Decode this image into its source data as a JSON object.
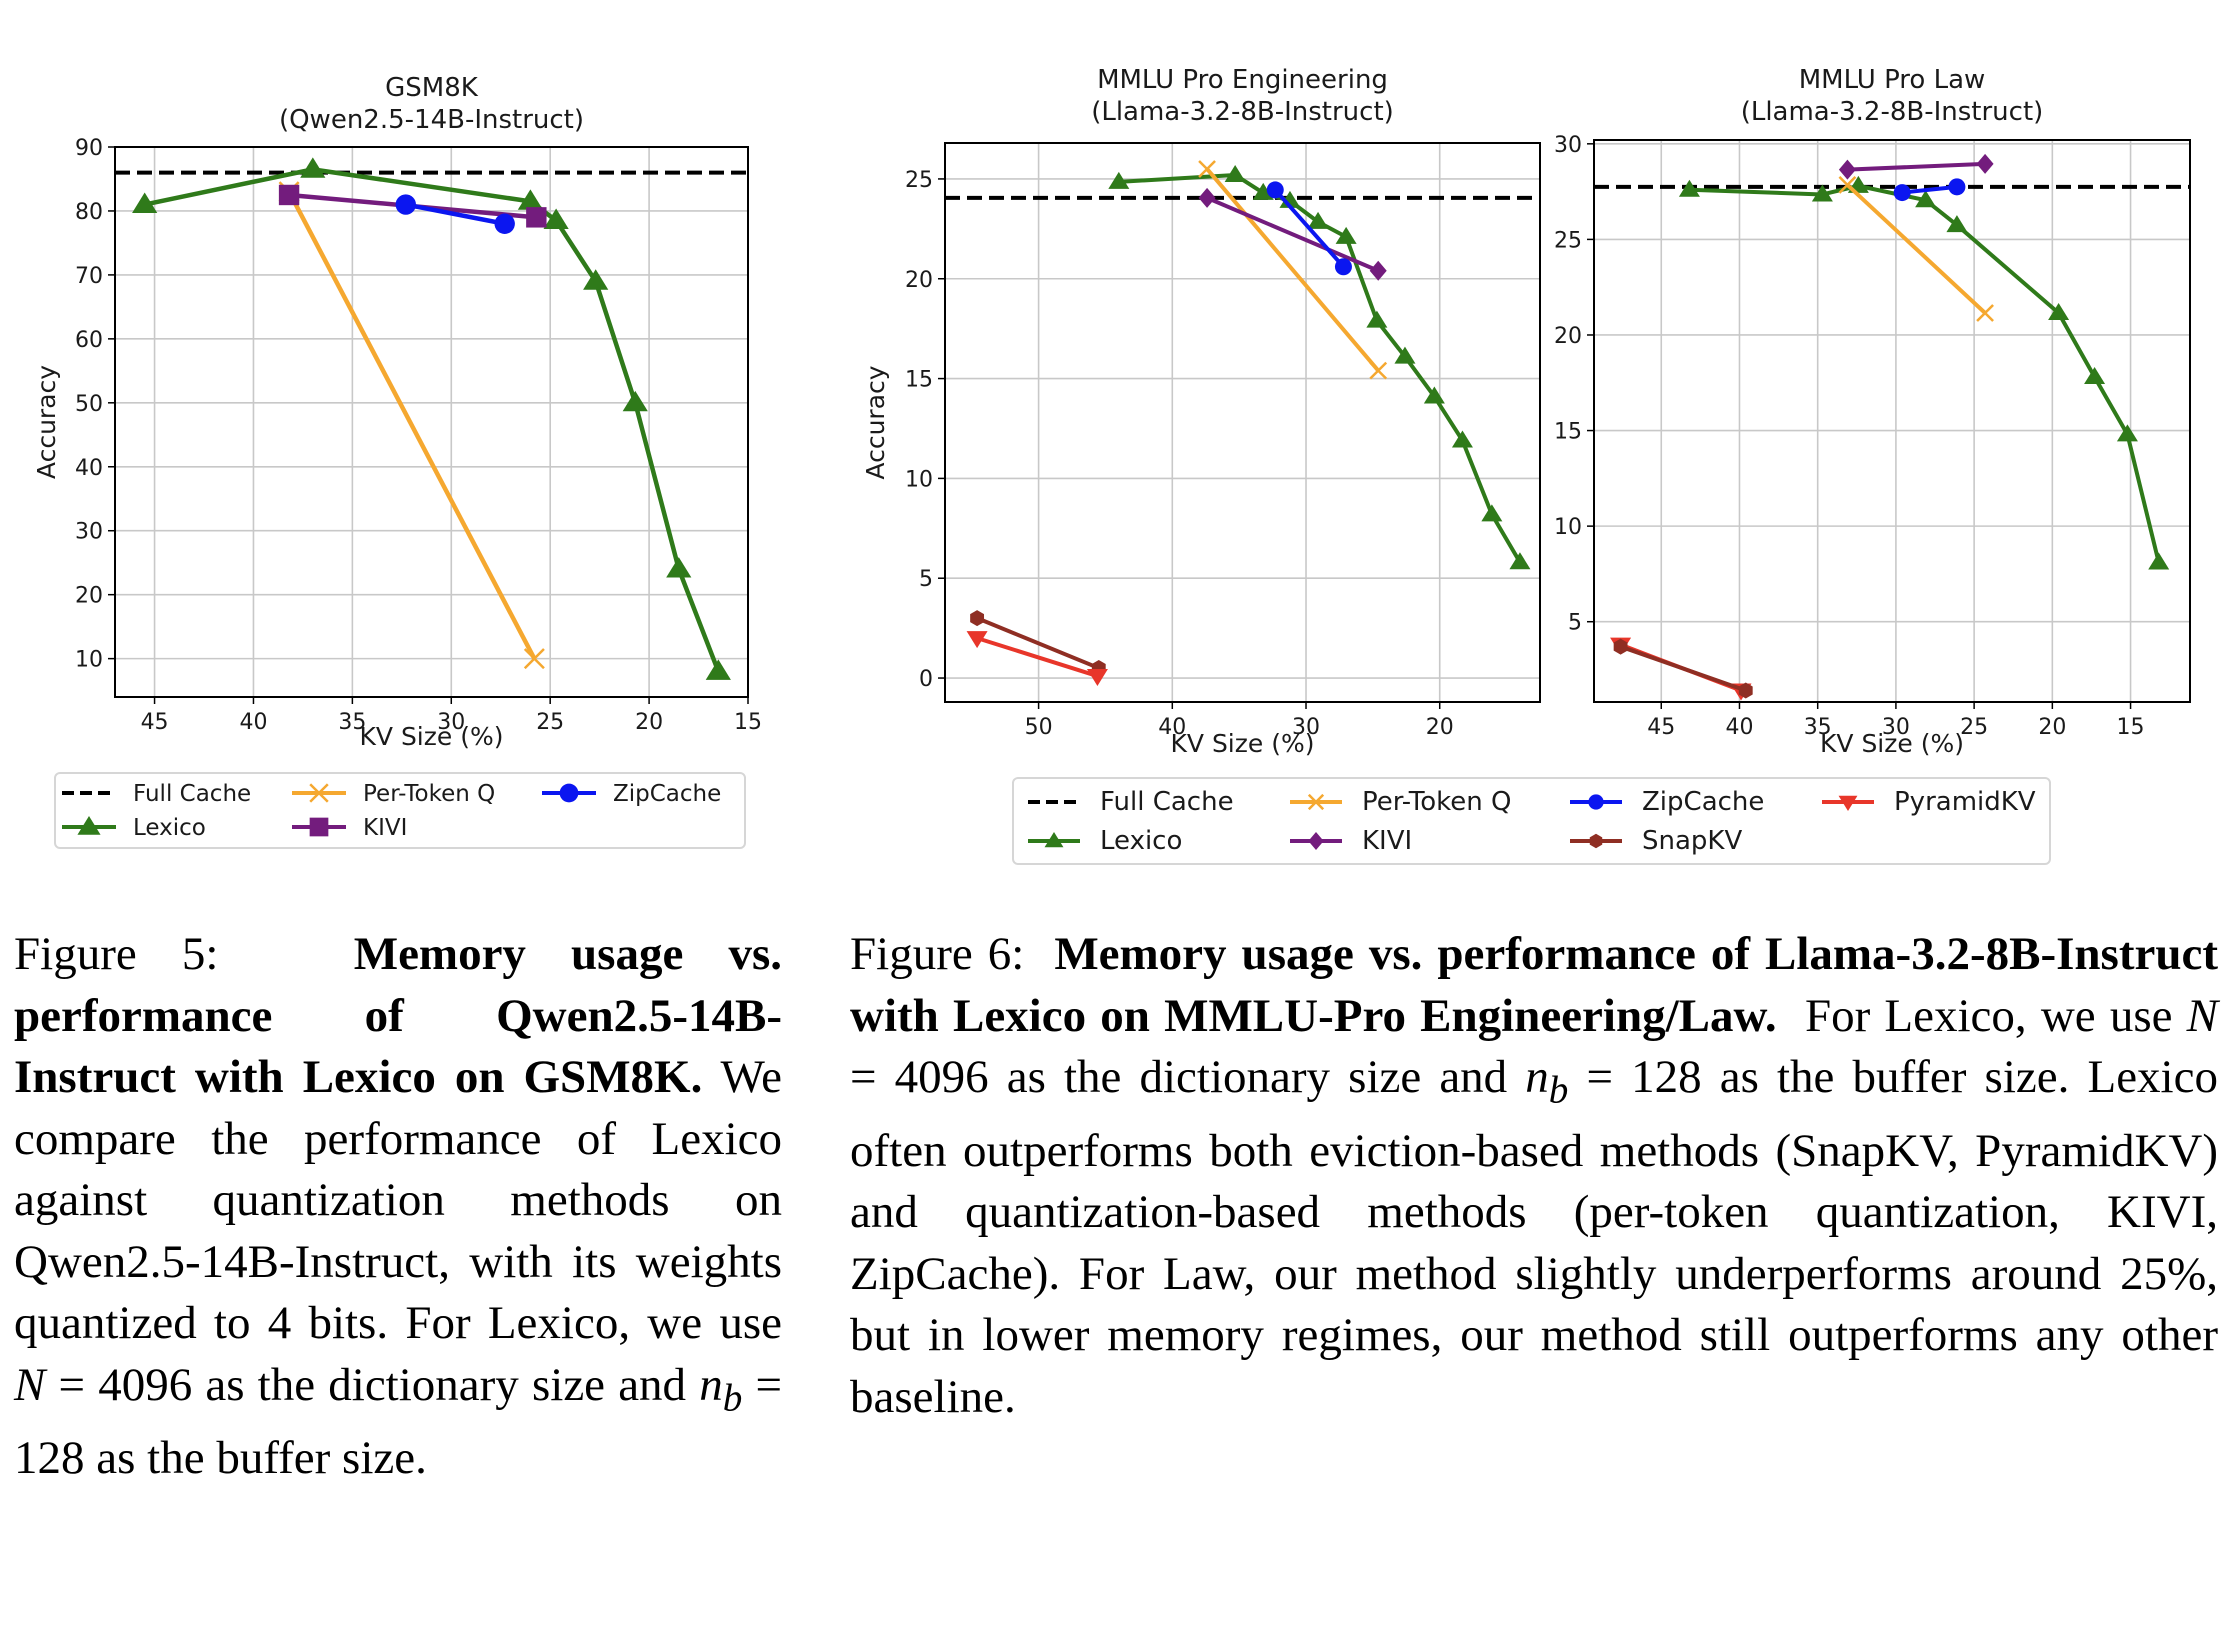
{
  "figure5": {
    "caption": {
      "label": "Figure 5:",
      "bold": "Memory usage vs. performance of Qwen2.5-14B-Instruct with Lexico on GSM8K.",
      "text_1": "We compare the performance of Lexico against quantization methods on Qwen2.5-14B-Instruct, with its weights quantized to 4 bits. For Lexico, we use",
      "math_N": "N",
      "eq_N": " = 4096 ",
      "text_2": "as the dictionary size and",
      "math_nb": "n",
      "math_nb_sub": "b",
      "eq_nb": " = 128 ",
      "text_3": "as the buffer size."
    },
    "legend": [
      {
        "name": "Full Cache",
        "series": "full_cache"
      },
      {
        "name": "Per-Token Q",
        "series": "per_token_q"
      },
      {
        "name": "ZipCache",
        "series": "zipcache"
      },
      {
        "name": "Lexico",
        "series": "lexico"
      },
      {
        "name": "KIVI",
        "series": "kivi"
      }
    ]
  },
  "figure6": {
    "caption": {
      "label": "Figure 6:",
      "bold": "Memory usage vs. performance of Llama-3.2-8B-Instruct with Lexico on MMLU-Pro Engineering/Law.",
      "text_1": "For Lexico, we use",
      "math_N": "N",
      "eq_N": " = 4096 ",
      "text_2": "as the dictionary size and",
      "math_nb": "n",
      "math_nb_sub": "b",
      "eq_nb": " = 128 ",
      "text_3": "as the buffer size. Lexico often outperforms both eviction-based methods (SnapKV, PyramidKV) and quantization-based methods (per-token quantization, KIVI, ZipCache). For Law, our method slightly underperforms around 25%, but in lower memory regimes, our method still outperforms any other baseline."
    },
    "legend": [
      {
        "name": "Full Cache",
        "series": "full_cache"
      },
      {
        "name": "Per-Token Q",
        "series": "per_token_q"
      },
      {
        "name": "ZipCache",
        "series": "zipcache"
      },
      {
        "name": "PyramidKV",
        "series": "pyramidkv"
      },
      {
        "name": "Lexico",
        "series": "lexico"
      },
      {
        "name": "KIVI",
        "series": "kivi"
      },
      {
        "name": "SnapKV",
        "series": "snapkv"
      }
    ]
  },
  "series_styles": {
    "full_cache": {
      "color": "#000000",
      "marker": "none",
      "dashed": true
    },
    "lexico": {
      "color": "#2f7a1a",
      "marker": "triangle-up"
    },
    "per_token_q": {
      "color": "#f5a830",
      "marker": "x"
    },
    "kivi": {
      "color": "#731c7d",
      "marker_fig5": "square",
      "marker": "diamond"
    },
    "zipcache": {
      "color": "#0b16f0",
      "marker": "circle"
    },
    "snapkv": {
      "color": "#8f2e23",
      "marker": "hexagon"
    },
    "pyramidkv": {
      "color": "#e8362a",
      "marker": "triangle-down"
    }
  },
  "chart_data": [
    {
      "type": "line",
      "title": "GSM8K\n(Qwen2.5-14B-Instruct)",
      "title_lines": [
        "GSM8K",
        "(Qwen2.5-14B-Instruct)"
      ],
      "xlabel": "KV Size (%)",
      "ylabel": "Accuracy",
      "xlim": [
        47,
        15
      ],
      "ylim": [
        4,
        90
      ],
      "xticks": [
        45,
        40,
        35,
        30,
        25,
        20,
        15
      ],
      "yticks": [
        10,
        20,
        30,
        40,
        50,
        60,
        70,
        80,
        90
      ],
      "grid": true,
      "legend_position": "below",
      "hline": {
        "name": "Full Cache",
        "y": 86
      },
      "series": [
        {
          "name": "Lexico",
          "key": "lexico",
          "marker": "triangle-up",
          "x": [
            45.5,
            37.0,
            26.0,
            24.7,
            22.7,
            20.7,
            18.5,
            16.5
          ],
          "y": [
            81,
            86.5,
            81.5,
            78.5,
            69,
            50,
            24,
            8
          ]
        },
        {
          "name": "Per-Token Q",
          "key": "per_token_q",
          "marker": "x",
          "x": [
            38.2,
            25.8
          ],
          "y": [
            83,
            10
          ]
        },
        {
          "name": "KIVI",
          "key": "kivi",
          "marker": "square",
          "x": [
            38.2,
            25.7
          ],
          "y": [
            82.5,
            79
          ]
        },
        {
          "name": "ZipCache",
          "key": "zipcache",
          "marker": "circle",
          "x": [
            32.3,
            27.3
          ],
          "y": [
            81,
            78
          ]
        }
      ]
    },
    {
      "type": "line",
      "title": "MMLU Pro Engineering\n(Llama-3.2-8B-Instruct)",
      "title_lines": [
        "MMLU Pro Engineering",
        "(Llama-3.2-8B-Instruct)"
      ],
      "xlabel": "KV Size (%)",
      "ylabel": "Accuracy",
      "xlim": [
        57,
        12.5
      ],
      "ylim": [
        -1.2,
        26.8
      ],
      "xticks": [
        50,
        40,
        30,
        20
      ],
      "yticks": [
        0,
        5,
        10,
        15,
        20,
        25
      ],
      "grid": true,
      "legend_position": "below",
      "hline": {
        "name": "Full Cache",
        "y": 24.05
      },
      "series": [
        {
          "name": "Lexico",
          "key": "lexico",
          "marker": "triangle-up",
          "x": [
            44.0,
            35.3,
            33.2,
            31.2,
            29.1,
            27.0,
            24.7,
            22.6,
            20.4,
            18.3,
            16.1,
            14.0
          ],
          "y": [
            24.85,
            25.2,
            24.3,
            23.9,
            22.85,
            22.1,
            17.9,
            16.1,
            14.1,
            11.9,
            8.2,
            5.8
          ]
        },
        {
          "name": "Per-Token Q",
          "key": "per_token_q",
          "marker": "x",
          "x": [
            37.4,
            24.6
          ],
          "y": [
            25.5,
            15.4
          ]
        },
        {
          "name": "KIVI",
          "key": "kivi",
          "marker": "diamond",
          "x": [
            37.4,
            24.6
          ],
          "y": [
            24.05,
            20.4
          ]
        },
        {
          "name": "ZipCache",
          "key": "zipcache",
          "marker": "circle",
          "x": [
            32.3,
            27.2
          ],
          "y": [
            24.45,
            20.6
          ]
        },
        {
          "name": "SnapKV",
          "key": "snapkv",
          "marker": "hexagon",
          "x": [
            54.6,
            45.5
          ],
          "y": [
            3.0,
            0.5
          ]
        },
        {
          "name": "PyramidKV",
          "key": "pyramidkv",
          "marker": "triangle-down",
          "x": [
            54.6,
            45.6
          ],
          "y": [
            2.0,
            0.1
          ]
        }
      ]
    },
    {
      "type": "line",
      "title": "MMLU Pro Law\n(Llama-3.2-8B-Instruct)",
      "title_lines": [
        "MMLU Pro Law",
        "(Llama-3.2-8B-Instruct)"
      ],
      "xlabel": "KV Size (%)",
      "ylabel": "",
      "xlim": [
        49.3,
        11.2
      ],
      "ylim": [
        0.8,
        30.2
      ],
      "xticks": [
        45,
        40,
        35,
        30,
        25,
        20,
        15
      ],
      "yticks": [
        5,
        10,
        15,
        20,
        25,
        30
      ],
      "grid": true,
      "legend_position": "below",
      "hline": {
        "name": "Full Cache",
        "y": 27.75
      },
      "series": [
        {
          "name": "Lexico",
          "key": "lexico",
          "marker": "triangle-up",
          "x": [
            43.2,
            34.7,
            32.4,
            28.1,
            26.1,
            19.6,
            17.3,
            15.2,
            13.2
          ],
          "y": [
            27.6,
            27.35,
            27.8,
            27.05,
            25.75,
            21.15,
            17.8,
            14.8,
            8.1
          ]
        },
        {
          "name": "Per-Token Q",
          "key": "per_token_q",
          "marker": "x",
          "x": [
            33.1,
            24.3
          ],
          "y": [
            27.85,
            21.15
          ]
        },
        {
          "name": "KIVI",
          "key": "kivi",
          "marker": "diamond",
          "x": [
            33.1,
            24.3
          ],
          "y": [
            28.65,
            28.95
          ]
        },
        {
          "name": "ZipCache",
          "key": "zipcache",
          "marker": "circle",
          "x": [
            29.6,
            26.1
          ],
          "y": [
            27.45,
            27.75
          ]
        },
        {
          "name": "PyramidKV",
          "key": "pyramidkv",
          "marker": "triangle-down",
          "x": [
            47.6,
            39.9
          ],
          "y": [
            3.8,
            1.4
          ]
        },
        {
          "name": "SnapKV",
          "key": "snapkv",
          "marker": "hexagon",
          "x": [
            47.6,
            39.6
          ],
          "y": [
            3.7,
            1.4
          ]
        }
      ]
    }
  ]
}
